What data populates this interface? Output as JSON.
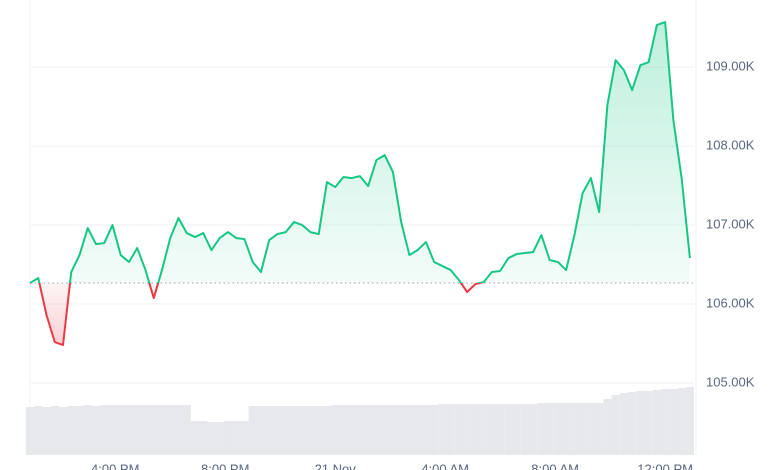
{
  "chart_data": {
    "type": "area",
    "x": [
      0,
      0.3,
      0.6,
      0.9,
      1.2,
      1.5,
      1.8,
      2.1,
      2.4,
      2.7,
      3.0,
      3.3,
      3.6,
      3.9,
      4.2,
      4.5,
      4.8,
      5.1,
      5.4,
      5.7,
      6.0,
      6.3,
      6.6,
      6.9,
      7.2,
      7.5,
      7.8,
      8.1,
      8.4,
      8.7,
      9.0,
      9.3,
      9.6,
      9.9,
      10.2,
      10.5,
      10.8,
      11.1,
      11.4,
      11.7,
      12.0,
      12.3,
      12.6,
      12.9,
      13.2,
      13.5,
      13.8,
      14.1,
      14.4,
      14.7,
      15.0,
      15.3,
      15.6,
      15.9,
      16.2,
      16.5,
      16.8,
      17.1,
      17.4,
      17.7,
      18.0,
      18.3,
      18.6,
      18.9,
      19.2,
      19.5,
      19.8,
      20.1,
      20.4,
      20.7,
      21.0,
      21.3,
      21.6,
      21.9,
      22.2,
      22.5,
      22.8,
      23.1,
      23.4,
      23.7,
      24.0
    ],
    "values": [
      106266,
      106329,
      105861,
      105519,
      105481,
      106405,
      106620,
      106962,
      106759,
      106772,
      107000,
      106620,
      106532,
      106709,
      106430,
      106076,
      106430,
      106835,
      107089,
      106899,
      106848,
      106899,
      106684,
      106835,
      106911,
      106835,
      106823,
      106532,
      106405,
      106810,
      106886,
      106911,
      107038,
      107000,
      106911,
      106886,
      107544,
      107481,
      107608,
      107595,
      107620,
      107494,
      107823,
      107886,
      107671,
      107038,
      106620,
      106684,
      106785,
      106532,
      106481,
      106430,
      106304,
      106152,
      106253,
      106278,
      106405,
      106418,
      106582,
      106633,
      106646,
      106658,
      106873,
      106557,
      106532,
      106430,
      106873,
      107405,
      107595,
      107165,
      108519,
      109089,
      108962,
      108709,
      109025,
      109063,
      109532,
      109570,
      108329,
      107595,
      106582
    ],
    "volume": [
      48,
      49,
      48,
      49,
      48,
      49,
      49,
      50,
      49,
      50,
      50,
      50,
      50,
      50,
      50,
      50,
      50,
      50,
      50,
      50,
      34,
      34,
      33,
      33,
      34,
      34,
      34,
      49,
      49,
      49,
      49,
      49,
      49,
      49,
      49,
      49,
      49,
      50,
      50,
      50,
      50,
      50,
      50,
      50,
      50,
      50,
      50,
      50,
      50,
      50,
      51,
      51,
      51,
      51,
      51,
      51,
      51,
      51,
      51,
      51,
      51,
      51,
      52,
      52,
      52,
      52,
      52,
      52,
      52,
      52,
      56,
      60,
      62,
      63,
      64,
      64,
      65,
      66,
      66,
      67,
      68
    ],
    "baseline": 106266,
    "up_color": "#16c784",
    "down_color": "#ea3943",
    "volume_color": "#e6e8ec",
    "xlim": [
      0,
      24.15
    ],
    "xticks": [
      {
        "value": 3.1,
        "label": "4:00 PM"
      },
      {
        "value": 7.1,
        "label": "8:00 PM"
      },
      {
        "value": 11.1,
        "label": "21 Nov"
      },
      {
        "value": 15.1,
        "label": "4:00 AM"
      },
      {
        "value": 19.1,
        "label": "8:00 AM"
      },
      {
        "value": 23.1,
        "label": "12:00 PM"
      }
    ],
    "ylim": [
      105000,
      109850
    ],
    "yticks": [
      {
        "value": 105000,
        "label": "105.00K"
      },
      {
        "value": 106000,
        "label": "106.00K"
      },
      {
        "value": 107000,
        "label": "107.00K"
      },
      {
        "value": 108000,
        "label": "108.00K"
      },
      {
        "value": 109000,
        "label": "109.00K"
      }
    ],
    "grid": true
  }
}
